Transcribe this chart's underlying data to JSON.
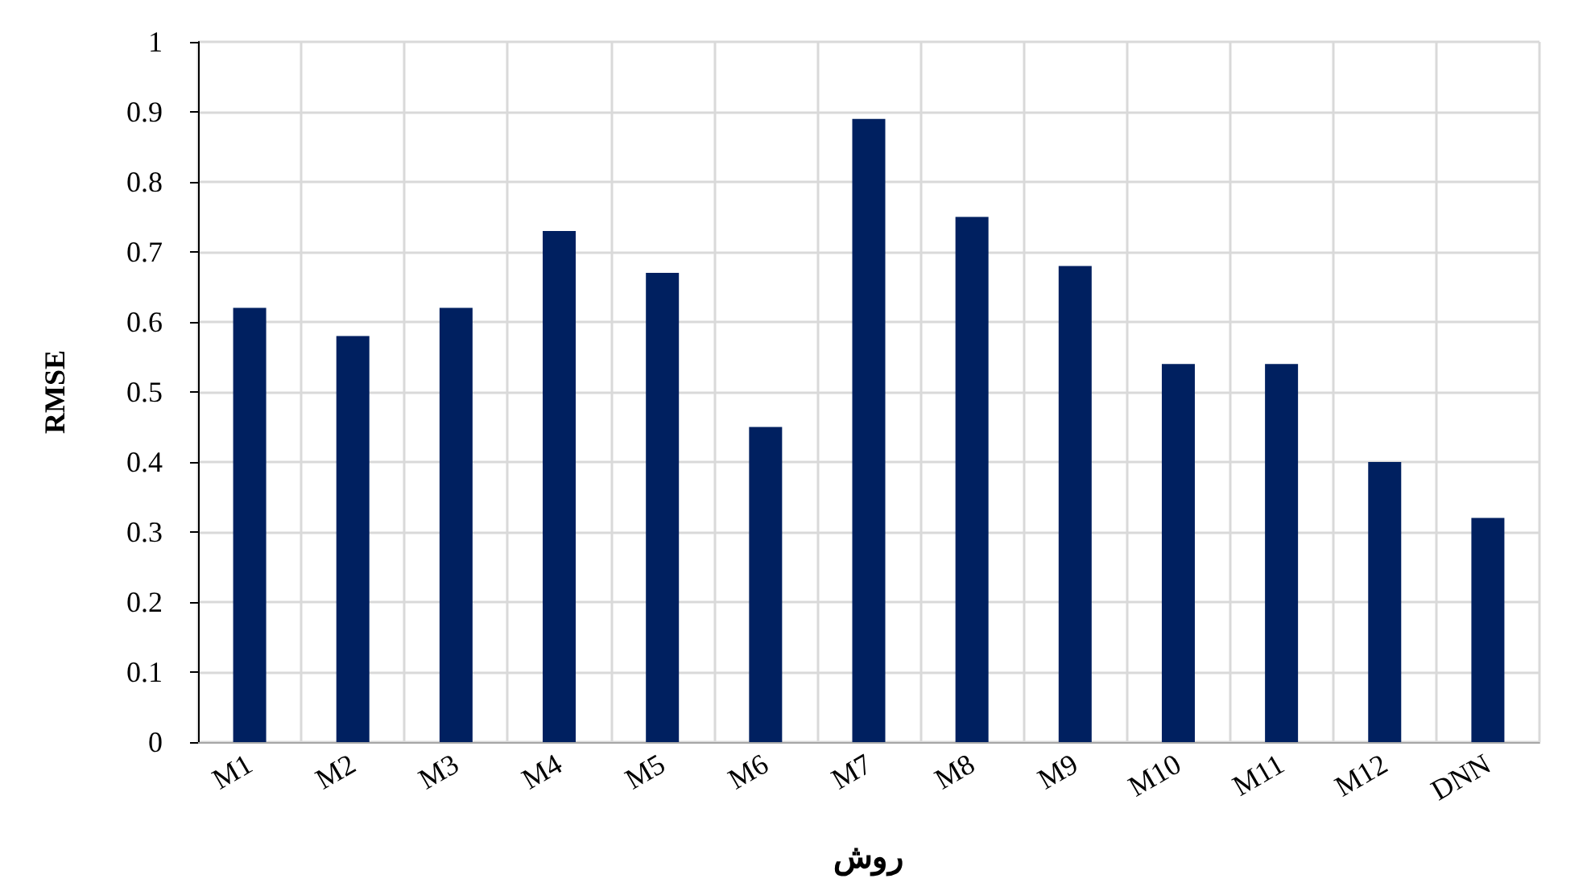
{
  "chart_data": {
    "type": "bar",
    "xlabel": "روش",
    "ylabel": "RMSE",
    "categories": [
      "M1",
      "M2",
      "M3",
      "M4",
      "M5",
      "M6",
      "M7",
      "M8",
      "M9",
      "M10",
      "M11",
      "M12",
      "DNN"
    ],
    "values": [
      0.62,
      0.58,
      0.62,
      0.73,
      0.67,
      0.45,
      0.89,
      0.75,
      0.68,
      0.54,
      0.54,
      0.4,
      0.32
    ],
    "color": "#002060",
    "ylim": [
      0,
      1
    ],
    "yticks": [
      0,
      0.1,
      0.2,
      0.3,
      0.4,
      0.5,
      0.6,
      0.7,
      0.8,
      0.9,
      1
    ],
    "grid": true
  }
}
